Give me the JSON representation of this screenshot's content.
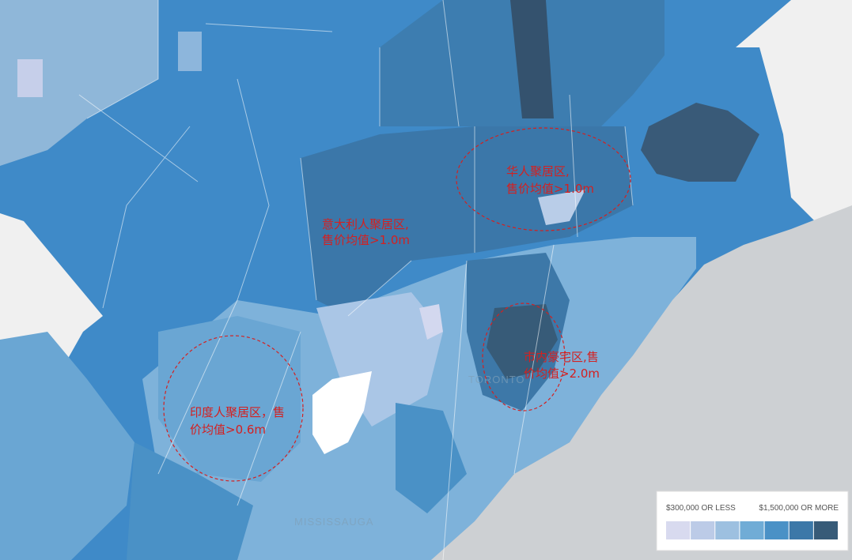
{
  "annotations": [
    {
      "lines": [
        "华人聚居区,",
        "售价均值>1.0m"
      ]
    },
    {
      "lines": [
        "意大利人聚居区,",
        "售价均值>1.0m"
      ]
    },
    {
      "lines": [
        "市内豪宅区,售",
        "价均值>2.0m"
      ]
    },
    {
      "lines": [
        "印度人聚居区，售",
        "价均值>0.6m"
      ]
    }
  ],
  "map_labels": [
    "TORONTO",
    "MISSISSAUGA"
  ],
  "legend": {
    "low_label": "$300,000 OR LESS",
    "high_label": "$1,500,000 OR MORE",
    "colors": [
      "#d8daef",
      "#bccbe7",
      "#9dc0e0",
      "#70acd6",
      "#4a91c6",
      "#3c78a8",
      "#375b78"
    ]
  }
}
